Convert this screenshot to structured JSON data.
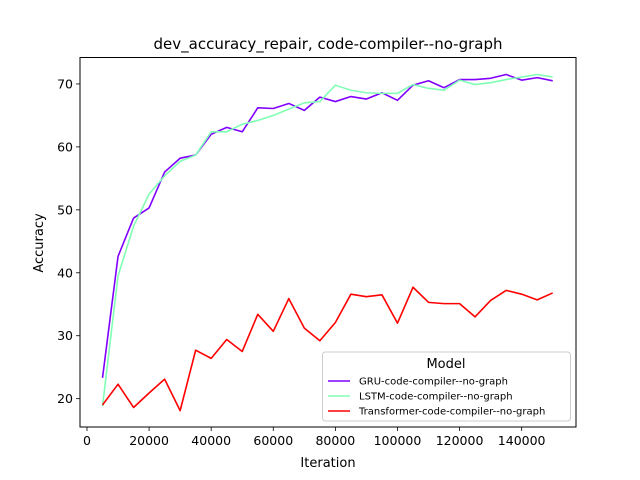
{
  "chart_data": {
    "type": "line",
    "title": "dev_accuracy_repair, code-compiler--no-graph",
    "xlabel": "Iteration",
    "ylabel": "Accuracy",
    "xlim": [
      -2250,
      157500
    ],
    "ylim": [
      15.5,
      74.2
    ],
    "xticks": [
      0,
      20000,
      40000,
      60000,
      80000,
      100000,
      120000,
      140000
    ],
    "yticks": [
      20,
      30,
      40,
      50,
      60,
      70
    ],
    "grid": false,
    "legend": {
      "title": "Model",
      "placement": "lower-right"
    },
    "x": [
      5000,
      10000,
      15000,
      20000,
      25000,
      30000,
      35000,
      40000,
      45000,
      50000,
      55000,
      60000,
      65000,
      70000,
      75000,
      80000,
      85000,
      90000,
      95000,
      100000,
      105000,
      110000,
      115000,
      120000,
      125000,
      130000,
      135000,
      140000,
      145000,
      150000
    ],
    "series": [
      {
        "name": "GRU-code-compiler--no-graph",
        "color": "#8000ff",
        "values": [
          23.3,
          42.6,
          48.7,
          50.3,
          56.0,
          58.2,
          58.7,
          62.0,
          63.1,
          62.4,
          66.2,
          66.1,
          66.9,
          65.8,
          67.9,
          67.2,
          68.0,
          67.6,
          68.6,
          67.4,
          69.8,
          70.5,
          69.4,
          70.7,
          70.7,
          70.9,
          71.5,
          70.6,
          71.0,
          70.5
        ]
      },
      {
        "name": "LSTM-code-compiler--no-graph",
        "color": "#80ffb4",
        "values": [
          18.8,
          39.5,
          47.4,
          52.5,
          55.4,
          57.7,
          58.7,
          62.4,
          62.4,
          63.6,
          64.2,
          65.0,
          66.0,
          67.0,
          67.2,
          69.8,
          69.0,
          68.6,
          68.5,
          68.5,
          69.9,
          69.3,
          69.0,
          70.6,
          69.9,
          70.2,
          70.7,
          71.1,
          71.5,
          71.1
        ]
      },
      {
        "name": "Transformer-code-compiler--no-graph",
        "color": "#ff0000",
        "values": [
          19.0,
          22.3,
          18.6,
          20.9,
          23.1,
          18.1,
          27.7,
          26.4,
          29.4,
          27.5,
          33.4,
          30.7,
          35.9,
          31.2,
          29.2,
          32.1,
          36.6,
          36.2,
          36.5,
          32.0,
          37.7,
          35.3,
          35.1,
          35.1,
          33.0,
          35.6,
          37.2,
          36.6,
          35.7,
          36.8
        ]
      }
    ]
  }
}
